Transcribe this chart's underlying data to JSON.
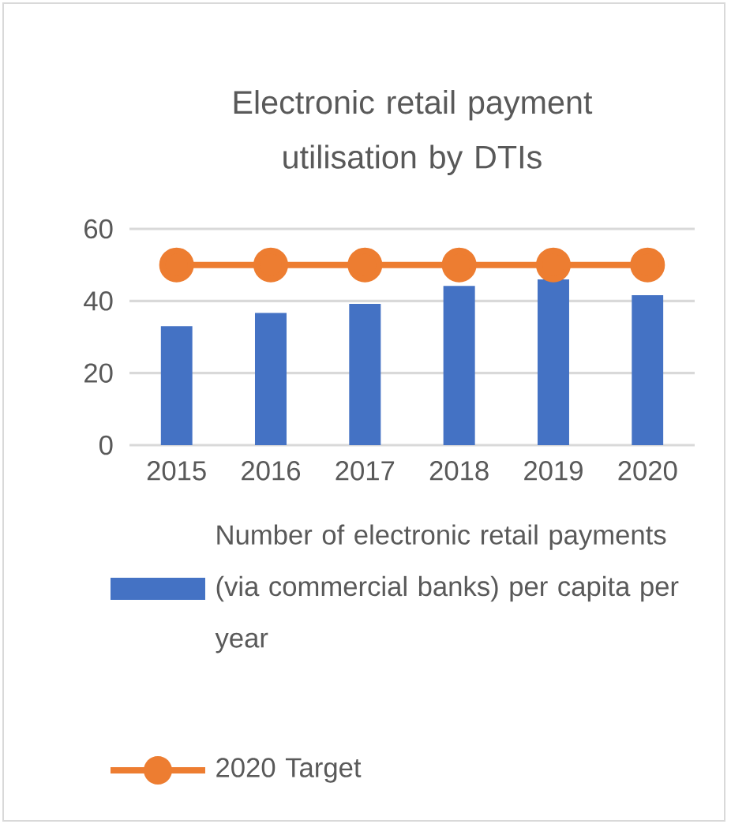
{
  "chart_data": {
    "type": "bar",
    "title": "Electronic retail payment utilisation by DTIs",
    "categories": [
      "2015",
      "2016",
      "2017",
      "2018",
      "2019",
      "2020"
    ],
    "series": [
      {
        "name": "Number of electronic retail payments (via commercial banks) per capita per year",
        "color": "#4472c4",
        "values": [
          33,
          36.7,
          39.2,
          44.2,
          46,
          41.6
        ]
      },
      {
        "name": "2020 Target",
        "type": "line",
        "color": "#ed7d31",
        "marker": "circle",
        "line_style": "solid",
        "values": [
          50,
          50,
          50,
          50,
          50,
          50
        ]
      }
    ],
    "ylim": [
      0,
      60
    ],
    "yticks": [
      0,
      20,
      40,
      60
    ],
    "grid": "y",
    "legend": "bottom"
  }
}
